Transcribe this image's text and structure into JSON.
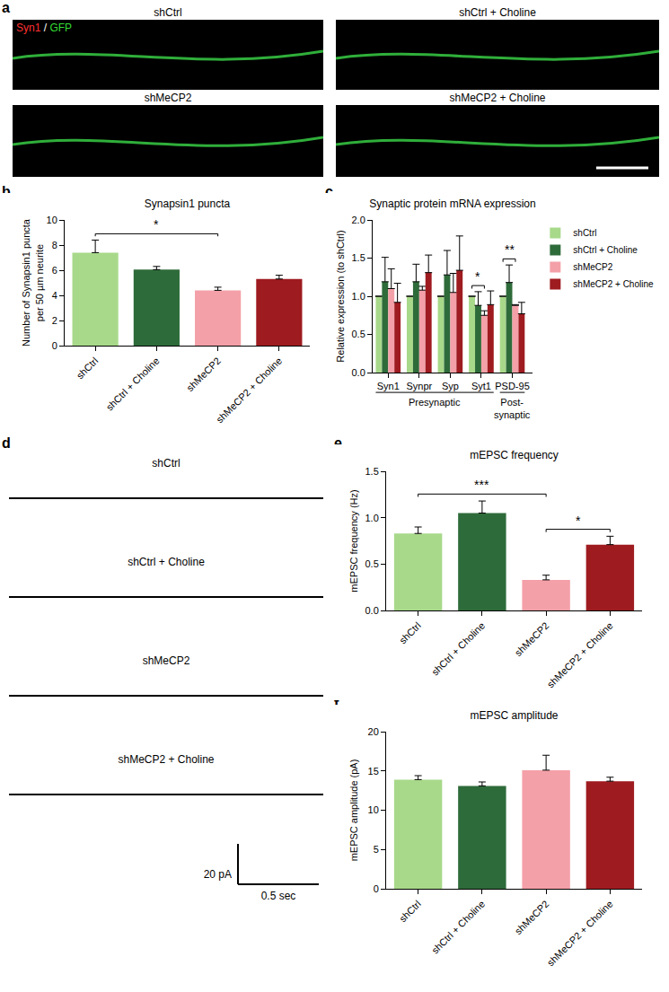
{
  "panel_labels": [
    "a",
    "b",
    "c",
    "d",
    "e",
    "f"
  ],
  "images": {
    "labels": [
      "shCtrl",
      "shCtrl + Choline",
      "shMeCP2",
      "shMeCP2 + Choline"
    ],
    "channel_label": [
      {
        "text": "Syn1",
        "color": "#ff3030"
      },
      {
        "text": " / ",
        "color": "#ffffff"
      },
      {
        "text": "GFP",
        "color": "#33dd33"
      }
    ]
  },
  "traces": {
    "labels": [
      "shCtrl",
      "shCtrl + Choline",
      "shMeCP2",
      "shMeCP2 + Choline"
    ],
    "scale_bar": {
      "y_label": "20 pA",
      "x_label": "0.5 sec"
    }
  },
  "chart_data": [
    {
      "panel": "b",
      "type": "bar",
      "title": "Synapsin1 puncta",
      "y_label": "Number of Synapsin1 puncta\nper 50 µm neurite",
      "categories": [
        "shCtrl",
        "shCtrl + Choline",
        "shMeCP2",
        "shMeCP2 + Choline"
      ],
      "values": [
        7.4,
        6.05,
        4.4,
        5.3
      ],
      "error": [
        1.0,
        0.25,
        0.25,
        0.3
      ],
      "colors": [
        "#a8d98a",
        "#2e6b3a",
        "#f4a0a8",
        "#9e1b20"
      ],
      "ylim": [
        0,
        10
      ],
      "yticks": [
        0,
        2,
        4,
        6,
        8,
        10
      ],
      "grid": false,
      "significance": [
        {
          "between": [
            "shCtrl",
            "shMeCP2"
          ],
          "label": "*"
        }
      ]
    },
    {
      "panel": "c",
      "type": "grouped_bar",
      "title": "Synaptic protein mRNA expression",
      "y_label": "Relative expression (to shCtrl)",
      "categories": [
        "Syn1",
        "Synpr",
        "Syp",
        "Syt1",
        "PSD-95"
      ],
      "series": [
        {
          "name": "shCtrl",
          "color": "#a8d98a",
          "values": [
            1,
            1,
            1,
            1,
            1
          ],
          "error": [
            0,
            0,
            0,
            0,
            0
          ]
        },
        {
          "name": "shCtrl + Choline",
          "color": "#2e6b3a",
          "values": [
            1.19,
            1.19,
            1.28,
            0.88,
            1.18
          ],
          "error": [
            0.32,
            0.23,
            0.32,
            0.18,
            0.23
          ]
        },
        {
          "name": "shMeCP2",
          "color": "#f4a0a8",
          "values": [
            1.1,
            1.08,
            1.05,
            0.75,
            0.88
          ],
          "error": [
            0.26,
            0.05,
            0.25,
            0.06,
            0.01
          ]
        },
        {
          "name": "shMeCP2 + Choline",
          "color": "#9e1b20",
          "values": [
            0.92,
            1.31,
            1.34,
            0.89,
            0.77
          ],
          "error": [
            0.25,
            0.23,
            0.45,
            0.18,
            0.15
          ]
        }
      ],
      "ylim": [
        0,
        2
      ],
      "yticks": [
        {
          "value": 0,
          "label": "0.0"
        },
        0.5,
        {
          "value": 1,
          "label": "1.0"
        },
        1.5,
        {
          "value": 2,
          "label": "2.0"
        }
      ],
      "grid": false,
      "legend": "right",
      "groups": [
        {
          "label": "Presynaptic",
          "from": "Syn1",
          "to": "Syt1"
        },
        {
          "label": "Post-\nsynaptic",
          "from": "PSD-95",
          "to": "PSD-95"
        }
      ],
      "significance": [
        {
          "category": "Syt1",
          "between": [
            "shCtrl",
            "shMeCP2"
          ],
          "label": "*"
        },
        {
          "category": "PSD-95",
          "between": [
            "shCtrl",
            "shMeCP2"
          ],
          "label": "**"
        }
      ]
    },
    {
      "panel": "e",
      "type": "bar",
      "title": "mEPSC frequency",
      "y_label": "mEPSC frequency (Hz)",
      "categories": [
        "shCtrl",
        "shCtrl + Choline",
        "shMeCP2",
        "shMeCP2 + Choline"
      ],
      "values": [
        0.83,
        1.05,
        0.33,
        0.71
      ],
      "error": [
        0.07,
        0.13,
        0.05,
        0.09
      ],
      "colors": [
        "#a8d98a",
        "#2e6b3a",
        "#f4a0a8",
        "#9e1b20"
      ],
      "ylim": [
        0,
        1.5
      ],
      "yticks": [
        {
          "value": 0,
          "label": "0.0"
        },
        0.5,
        {
          "value": 1,
          "label": "1.0"
        },
        1.5
      ],
      "grid": false,
      "significance": [
        {
          "between": [
            "shCtrl",
            "shMeCP2"
          ],
          "label": "***"
        },
        {
          "between": [
            "shMeCP2",
            "shMeCP2 + Choline"
          ],
          "label": "*"
        }
      ]
    },
    {
      "panel": "f",
      "type": "bar",
      "title": "mEPSC amplitude",
      "y_label": "mEPSC amplitude (pA)",
      "categories": [
        "shCtrl",
        "shCtrl + Choline",
        "shMeCP2",
        "shMeCP2 + Choline"
      ],
      "values": [
        13.9,
        13.1,
        15.1,
        13.7
      ],
      "error": [
        0.5,
        0.5,
        1.9,
        0.5
      ],
      "colors": [
        "#a8d98a",
        "#2e6b3a",
        "#f4a0a8",
        "#9e1b20"
      ],
      "ylim": [
        0,
        20
      ],
      "yticks": [
        0,
        5,
        10,
        15,
        20
      ],
      "grid": false,
      "significance": []
    }
  ]
}
